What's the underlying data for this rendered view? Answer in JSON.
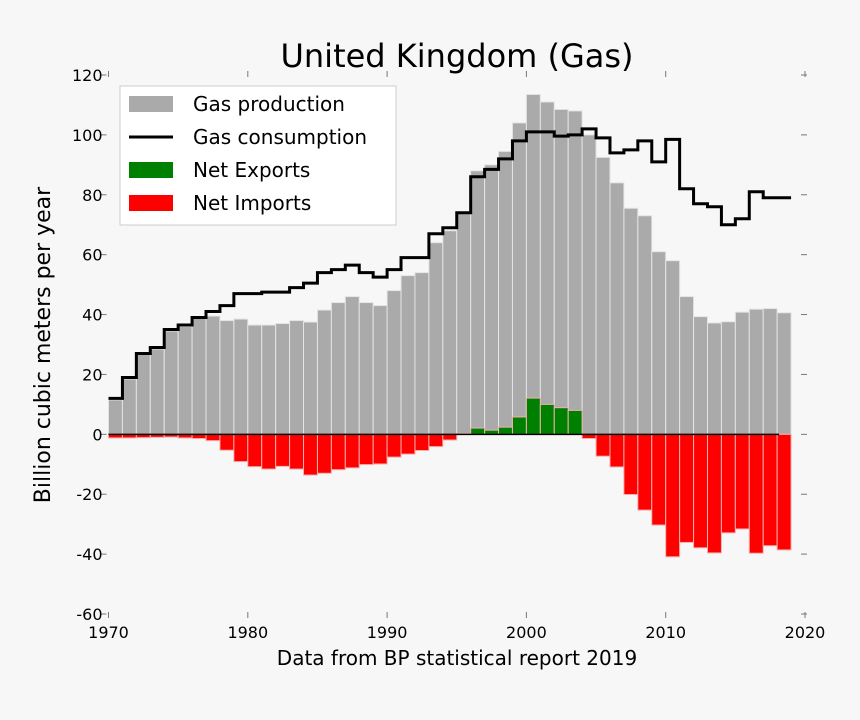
{
  "chart_data": {
    "type": "bar",
    "title": "United Kingdom (Gas)",
    "xlabel": "Data from BP statistical report 2019",
    "ylabel": "Billion cubic meters per year",
    "xlim": [
      1970,
      2020
    ],
    "ylim": [
      -60,
      120
    ],
    "xticks": [
      1970,
      1980,
      1990,
      2000,
      2010,
      2020
    ],
    "yticks": [
      -60,
      -40,
      -20,
      0,
      20,
      40,
      60,
      80,
      100,
      120
    ],
    "grid": false,
    "legend_position": "top-left",
    "years": [
      1970,
      1971,
      1972,
      1973,
      1974,
      1975,
      1976,
      1977,
      1978,
      1979,
      1980,
      1981,
      1982,
      1983,
      1984,
      1985,
      1986,
      1987,
      1988,
      1989,
      1990,
      1991,
      1992,
      1993,
      1994,
      1995,
      1996,
      1997,
      1998,
      1999,
      2000,
      2001,
      2002,
      2003,
      2004,
      2005,
      2006,
      2007,
      2008,
      2009,
      2010,
      2011,
      2012,
      2013,
      2014,
      2015,
      2016,
      2017,
      2018
    ],
    "series": [
      {
        "name": "Gas production",
        "kind": "bar",
        "color": "#aaaaaa",
        "values": [
          11.5,
          18.5,
          27,
          28.5,
          34.5,
          36,
          39,
          39.5,
          38,
          38.5,
          36.5,
          36.5,
          37,
          38,
          37.5,
          41.5,
          44,
          46,
          44,
          43,
          48,
          53,
          54,
          64,
          68,
          74,
          88,
          90,
          94.5,
          104,
          113.5,
          111,
          108.5,
          108,
          100,
          92.5,
          84,
          75.5,
          73,
          61,
          58,
          46,
          39.3,
          37.2,
          37.6,
          40.8,
          41.8,
          42,
          40.6
        ]
      },
      {
        "name": "Gas consumption",
        "kind": "step",
        "color": "#000000",
        "values": [
          12,
          19,
          27,
          29,
          35,
          36.5,
          39,
          41,
          43,
          47,
          47,
          47.5,
          47.5,
          49,
          50.5,
          54,
          55,
          56.5,
          54,
          52.5,
          55,
          59,
          59,
          67,
          69,
          74,
          86,
          88.5,
          92,
          98,
          101,
          101,
          99.6,
          100,
          102,
          99,
          94,
          95,
          98,
          91,
          98.5,
          82,
          77,
          76,
          70,
          72,
          81,
          79,
          79
        ]
      },
      {
        "name": "Net Exports",
        "kind": "bar",
        "color": "#008000",
        "values": [
          0,
          0,
          0,
          0,
          0,
          0,
          0,
          0,
          0,
          0,
          0,
          0,
          0,
          0,
          0,
          0,
          0,
          0,
          0,
          0,
          0,
          0,
          0,
          0,
          0,
          0.3,
          2.1,
          1.4,
          2.4,
          5.8,
          12.1,
          10,
          8.9,
          8,
          0,
          0,
          0,
          0,
          0,
          0,
          0,
          0,
          0,
          0,
          0,
          0,
          0,
          0,
          0
        ]
      },
      {
        "name": "Net Imports",
        "kind": "bar",
        "color": "#ff0000",
        "values": [
          -1.2,
          -1.2,
          -1.1,
          -1,
          -0.9,
          -1.2,
          -1.4,
          -2.1,
          -5.3,
          -9.1,
          -10.8,
          -11.6,
          -10.7,
          -11.6,
          -13.6,
          -13,
          -11.8,
          -11.2,
          -10.1,
          -9.9,
          -7.6,
          -6.6,
          -5.4,
          -4.1,
          -1.9,
          0,
          0,
          0,
          0,
          0,
          0,
          0,
          0,
          0,
          -1.4,
          -7.3,
          -10.9,
          -20.1,
          -25.3,
          -30.3,
          -40.9,
          -36.1,
          -37.9,
          -39.6,
          -32.9,
          -31.6,
          -39.7,
          -37.2,
          -38.6
        ]
      }
    ]
  }
}
